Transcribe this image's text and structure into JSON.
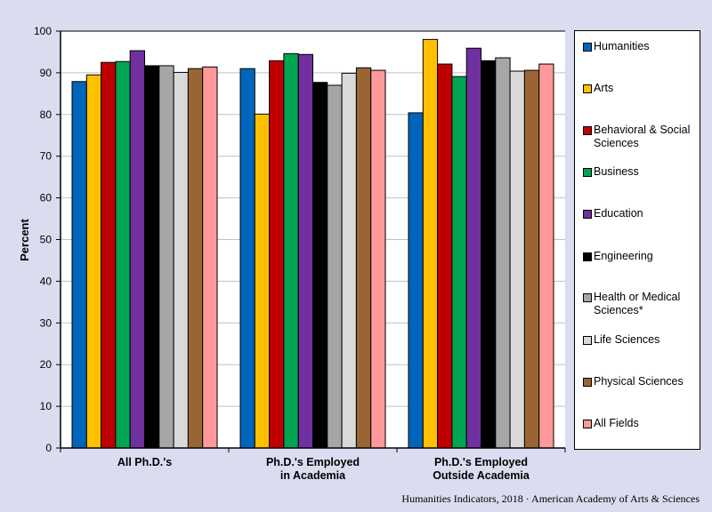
{
  "chart_data": {
    "type": "bar",
    "title": "",
    "xlabel": "",
    "ylabel": "Percent",
    "ylim": [
      0,
      100
    ],
    "yticks": [
      0,
      10,
      20,
      30,
      40,
      50,
      60,
      70,
      80,
      90,
      100
    ],
    "grid": true,
    "legend_position": "right",
    "categories": [
      "All Ph.D.'s",
      "Ph.D.'s Employed\nin Academia",
      "Ph.D.'s  Employed\nOutside Academia"
    ],
    "series": [
      {
        "name": "Humanities",
        "color": "#0066bb",
        "values": [
          87.9,
          91.0,
          80.4
        ]
      },
      {
        "name": "Arts",
        "color": "#ffc000",
        "values": [
          89.5,
          80.1,
          98.0
        ]
      },
      {
        "name": "Behavioral & Social Sciences",
        "color": "#c00000",
        "values": [
          92.5,
          92.9,
          92.1
        ]
      },
      {
        "name": "Business",
        "color": "#00a550",
        "values": [
          92.7,
          94.6,
          89.1
        ]
      },
      {
        "name": "Education",
        "color": "#7030a0",
        "values": [
          95.3,
          94.4,
          95.9
        ]
      },
      {
        "name": "Engineering",
        "color": "#000000",
        "values": [
          91.7,
          87.7,
          92.9
        ]
      },
      {
        "name": "Health or Medical Sciences*",
        "color": "#a6a6a6",
        "values": [
          91.7,
          87.0,
          93.6
        ]
      },
      {
        "name": "Life Sciences",
        "color": "#d9d9d9",
        "values": [
          90.1,
          89.9,
          90.4
        ]
      },
      {
        "name": "Physical Sciences",
        "color": "#996633",
        "values": [
          91.0,
          91.2,
          90.6
        ]
      },
      {
        "name": "All Fields",
        "color": "#ff9999",
        "values": [
          91.4,
          90.6,
          92.1
        ]
      }
    ]
  },
  "footer": "Humanities Indicators, 2018 · American Academy of Arts & Sciences"
}
